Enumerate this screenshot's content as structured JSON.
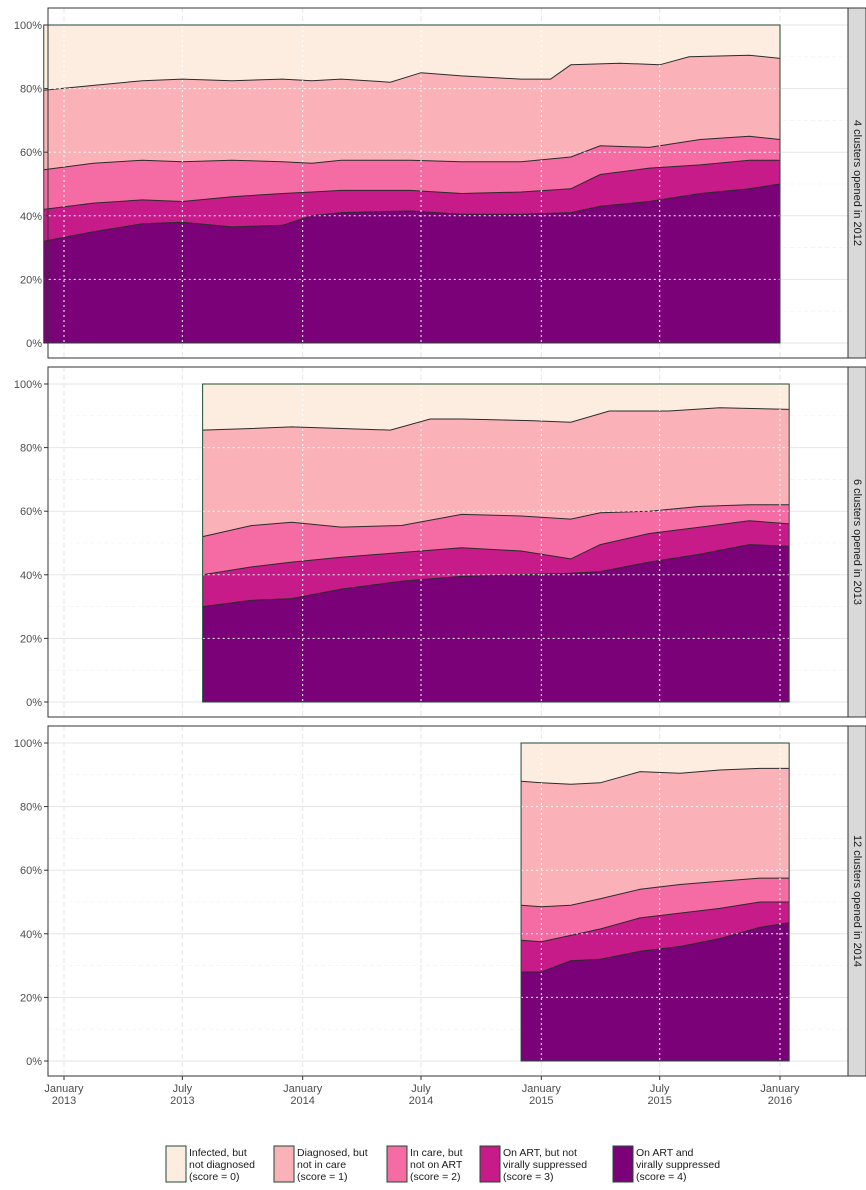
{
  "chart_data": {
    "type": "area",
    "stacked": true,
    "percent": true,
    "x_ticks": [
      {
        "date": "2013-01",
        "label": [
          "January",
          "2013"
        ]
      },
      {
        "date": "2013-07",
        "label": [
          "July",
          "2013"
        ]
      },
      {
        "date": "2014-01",
        "label": [
          "January",
          "2014"
        ]
      },
      {
        "date": "2014-07",
        "label": [
          "July",
          "2014"
        ]
      },
      {
        "date": "2015-01",
        "label": [
          "January",
          "2015"
        ]
      },
      {
        "date": "2015-07",
        "label": [
          "July",
          "2015"
        ]
      },
      {
        "date": "2016-01",
        "label": [
          "January",
          "2016"
        ]
      }
    ],
    "y_ticks": [
      "0%",
      "20%",
      "40%",
      "60%",
      "80%",
      "100%"
    ],
    "ylim": [
      0,
      100
    ],
    "grid": true,
    "legend_position": "bottom",
    "colors": {
      "score0": "#fdede1",
      "score1": "#fab2b8",
      "score2": "#f56ba3",
      "score3": "#c71b8a",
      "score4": "#7a0177",
      "border": "#1f4a33",
      "strip_fill": "#d9d9d9"
    },
    "legend": [
      {
        "key": "score0",
        "lines": [
          "Infected, but",
          "not diagnosed",
          "(score = 0)"
        ]
      },
      {
        "key": "score1",
        "lines": [
          "Diagnosed, but",
          "not in care",
          "(score = 1)"
        ]
      },
      {
        "key": "score2",
        "lines": [
          "In care, but",
          "not on ART",
          "(score = 2)"
        ]
      },
      {
        "key": "score3",
        "lines": [
          "On ART, but not",
          "virally suppressed",
          "(score = 3)"
        ]
      },
      {
        "key": "score4",
        "lines": [
          "On ART and",
          "virally suppressed",
          "(score = 4)"
        ]
      }
    ],
    "panels": [
      {
        "strip": "4 clusters opened in 2012",
        "series": [
          {
            "key": "score4",
            "points": [
              [
                "2012-12-01",
                32
              ],
              [
                "2013-02-15",
                35
              ],
              [
                "2013-05-01",
                37.5
              ],
              [
                "2013-07-01",
                38
              ],
              [
                "2013-09-15",
                36.5
              ],
              [
                "2013-12-01",
                37
              ],
              [
                "2014-01-15",
                40
              ],
              [
                "2014-03-01",
                41
              ],
              [
                "2014-06-15",
                41.5
              ],
              [
                "2014-09-01",
                40.5
              ],
              [
                "2014-12-01",
                40.5
              ],
              [
                "2015-02-15",
                41
              ],
              [
                "2015-04-01",
                43
              ],
              [
                "2015-06-15",
                44.5
              ],
              [
                "2015-09-01",
                47
              ],
              [
                "2015-11-15",
                48.5
              ],
              [
                "2016-01-01",
                50
              ]
            ]
          },
          {
            "key": "score3",
            "points": [
              [
                "2012-12-01",
                42
              ],
              [
                "2013-02-15",
                44
              ],
              [
                "2013-05-01",
                45
              ],
              [
                "2013-07-01",
                44.5
              ],
              [
                "2013-09-15",
                46
              ],
              [
                "2013-12-01",
                47
              ],
              [
                "2014-01-15",
                47.5
              ],
              [
                "2014-03-01",
                48
              ],
              [
                "2014-06-15",
                48
              ],
              [
                "2014-09-01",
                47
              ],
              [
                "2014-12-01",
                47.5
              ],
              [
                "2015-02-15",
                48.5
              ],
              [
                "2015-04-01",
                53
              ],
              [
                "2015-06-15",
                55
              ],
              [
                "2015-09-01",
                56
              ],
              [
                "2015-11-15",
                57.5
              ],
              [
                "2016-01-01",
                57.5
              ]
            ]
          },
          {
            "key": "score2",
            "points": [
              [
                "2012-12-01",
                54.5
              ],
              [
                "2013-02-15",
                56.5
              ],
              [
                "2013-05-01",
                57.5
              ],
              [
                "2013-07-01",
                57
              ],
              [
                "2013-09-15",
                57.5
              ],
              [
                "2013-12-01",
                57
              ],
              [
                "2014-01-15",
                56.5
              ],
              [
                "2014-03-01",
                57.5
              ],
              [
                "2014-06-15",
                57.5
              ],
              [
                "2014-09-01",
                57
              ],
              [
                "2014-12-01",
                57
              ],
              [
                "2015-02-15",
                58.5
              ],
              [
                "2015-04-01",
                62
              ],
              [
                "2015-06-15",
                61.5
              ],
              [
                "2015-09-01",
                64
              ],
              [
                "2015-11-15",
                65
              ],
              [
                "2016-01-01",
                64
              ]
            ]
          },
          {
            "key": "score1",
            "points": [
              [
                "2012-12-01",
                79.5
              ],
              [
                "2013-02-15",
                81
              ],
              [
                "2013-05-01",
                82.5
              ],
              [
                "2013-07-01",
                83
              ],
              [
                "2013-09-15",
                82.5
              ],
              [
                "2013-12-01",
                83
              ],
              [
                "2014-01-15",
                82.5
              ],
              [
                "2014-03-01",
                83
              ],
              [
                "2014-05-15",
                82
              ],
              [
                "2014-07-01",
                85
              ],
              [
                "2014-09-01",
                84
              ],
              [
                "2014-12-01",
                83
              ],
              [
                "2015-01-15",
                83
              ],
              [
                "2015-02-15",
                87.5
              ],
              [
                "2015-05-01",
                88
              ],
              [
                "2015-07-01",
                87.5
              ],
              [
                "2015-08-15",
                90
              ],
              [
                "2015-11-15",
                90.5
              ],
              [
                "2016-01-01",
                89.5
              ]
            ]
          },
          {
            "key": "score0",
            "points": [
              [
                "2012-12-01",
                100
              ],
              [
                "2016-01-01",
                100
              ]
            ]
          }
        ]
      },
      {
        "strip": "6 clusters opened in 2013",
        "series": [
          {
            "key": "score4",
            "points": [
              [
                "2013-08-01",
                30
              ],
              [
                "2013-10-15",
                32
              ],
              [
                "2013-12-15",
                32.5
              ],
              [
                "2014-03-01",
                35.5
              ],
              [
                "2014-06-01",
                38
              ],
              [
                "2014-09-01",
                39.5
              ],
              [
                "2014-12-01",
                40
              ],
              [
                "2015-02-15",
                40.5
              ],
              [
                "2015-04-01",
                41
              ],
              [
                "2015-06-15",
                44
              ],
              [
                "2015-09-01",
                46.5
              ],
              [
                "2015-11-15",
                49.5
              ],
              [
                "2016-01-15",
                49
              ]
            ]
          },
          {
            "key": "score3",
            "points": [
              [
                "2013-08-01",
                40
              ],
              [
                "2013-10-15",
                42.5
              ],
              [
                "2013-12-15",
                44
              ],
              [
                "2014-03-01",
                45.5
              ],
              [
                "2014-06-01",
                47
              ],
              [
                "2014-09-01",
                48.5
              ],
              [
                "2014-12-01",
                47.5
              ],
              [
                "2015-02-15",
                45
              ],
              [
                "2015-04-01",
                49.5
              ],
              [
                "2015-06-15",
                53
              ],
              [
                "2015-09-01",
                55
              ],
              [
                "2015-11-15",
                57
              ],
              [
                "2016-01-15",
                56
              ]
            ]
          },
          {
            "key": "score2",
            "points": [
              [
                "2013-08-01",
                52
              ],
              [
                "2013-10-15",
                55.5
              ],
              [
                "2013-12-15",
                56.5
              ],
              [
                "2014-03-01",
                55
              ],
              [
                "2014-06-01",
                55.5
              ],
              [
                "2014-09-01",
                59
              ],
              [
                "2014-12-01",
                58.5
              ],
              [
                "2015-02-15",
                57.5
              ],
              [
                "2015-04-01",
                59.5
              ],
              [
                "2015-06-15",
                60
              ],
              [
                "2015-09-01",
                61.5
              ],
              [
                "2015-11-15",
                62
              ],
              [
                "2016-01-15",
                62
              ]
            ]
          },
          {
            "key": "score1",
            "points": [
              [
                "2013-08-01",
                85.5
              ],
              [
                "2013-10-15",
                86
              ],
              [
                "2013-12-15",
                86.5
              ],
              [
                "2014-03-01",
                86
              ],
              [
                "2014-05-15",
                85.5
              ],
              [
                "2014-07-15",
                89
              ],
              [
                "2014-09-01",
                89
              ],
              [
                "2014-12-15",
                88.5
              ],
              [
                "2015-02-15",
                88
              ],
              [
                "2015-04-15",
                91.5
              ],
              [
                "2015-07-15",
                91.5
              ],
              [
                "2015-10-01",
                92.5
              ],
              [
                "2016-01-15",
                92
              ]
            ]
          },
          {
            "key": "score0",
            "points": [
              [
                "2013-08-01",
                100
              ],
              [
                "2016-01-15",
                100
              ]
            ]
          }
        ]
      },
      {
        "strip": "12 clusters opened in 2014",
        "series": [
          {
            "key": "score4",
            "points": [
              [
                "2014-12-01",
                28
              ],
              [
                "2015-01-01",
                28
              ],
              [
                "2015-02-15",
                31.5
              ],
              [
                "2015-04-01",
                32
              ],
              [
                "2015-06-01",
                34.5
              ],
              [
                "2015-08-01",
                36
              ],
              [
                "2015-10-01",
                38.5
              ],
              [
                "2015-12-01",
                42
              ],
              [
                "2016-01-15",
                43.5
              ]
            ]
          },
          {
            "key": "score3",
            "points": [
              [
                "2014-12-01",
                38
              ],
              [
                "2015-01-01",
                37.5
              ],
              [
                "2015-02-15",
                39.5
              ],
              [
                "2015-04-01",
                41.5
              ],
              [
                "2015-06-01",
                45
              ],
              [
                "2015-08-01",
                46.5
              ],
              [
                "2015-10-01",
                48
              ],
              [
                "2015-12-01",
                50
              ],
              [
                "2016-01-15",
                50
              ]
            ]
          },
          {
            "key": "score2",
            "points": [
              [
                "2014-12-01",
                49
              ],
              [
                "2015-01-01",
                48.5
              ],
              [
                "2015-02-15",
                49
              ],
              [
                "2015-04-01",
                51
              ],
              [
                "2015-06-01",
                54
              ],
              [
                "2015-08-01",
                55.5
              ],
              [
                "2015-10-01",
                56.5
              ],
              [
                "2015-12-01",
                57.5
              ],
              [
                "2016-01-15",
                57.5
              ]
            ]
          },
          {
            "key": "score1",
            "points": [
              [
                "2014-12-01",
                88
              ],
              [
                "2015-01-01",
                87.5
              ],
              [
                "2015-02-15",
                87
              ],
              [
                "2015-04-01",
                87.5
              ],
              [
                "2015-06-01",
                91
              ],
              [
                "2015-08-01",
                90.5
              ],
              [
                "2015-10-01",
                91.5
              ],
              [
                "2015-12-01",
                92
              ],
              [
                "2016-01-15",
                92
              ]
            ]
          },
          {
            "key": "score0",
            "points": [
              [
                "2014-12-01",
                100
              ],
              [
                "2016-01-15",
                100
              ]
            ]
          }
        ]
      }
    ]
  }
}
